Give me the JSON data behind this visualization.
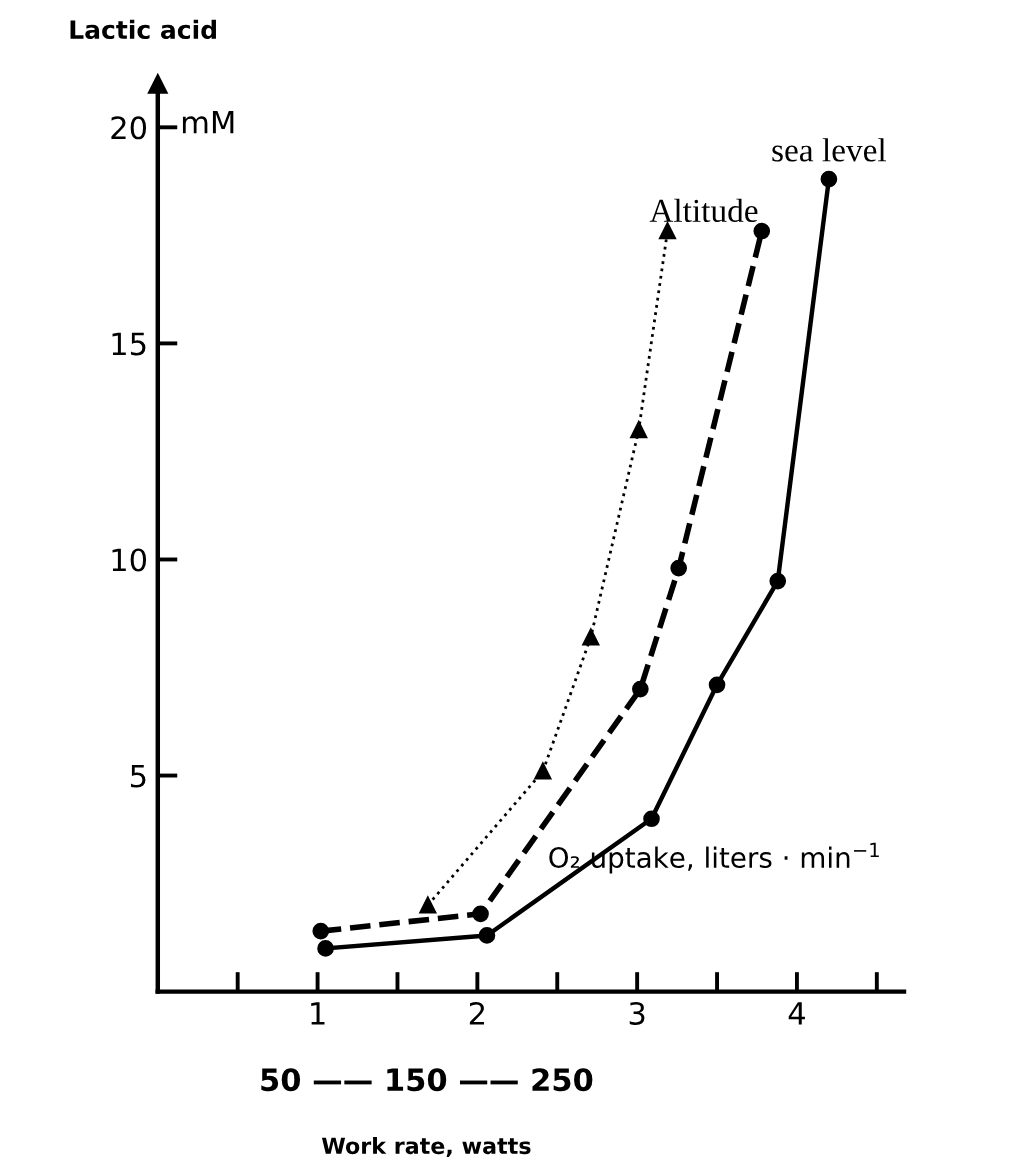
{
  "chart_data": {
    "type": "line",
    "ylabel": "Lactic acid",
    "xlabel": "O₂ uptake, liters · min$^{−1}$",
    "annotations": [
      "mM",
      "50 —— 150 —— 250",
      "Work rate, watts"
    ],
    "xlim": [
      0,
      4.67
    ],
    "ylim": [
      0,
      21
    ],
    "xticks": [
      {
        "value": 0.5,
        "label": null
      },
      1,
      {
        "value": 1.5,
        "label": null
      },
      2,
      {
        "value": 2.5,
        "label": null
      },
      3,
      {
        "value": 3.5,
        "label": null
      },
      4,
      {
        "value": 4.5,
        "label": null
      }
    ],
    "yticks": [
      5,
      10,
      15,
      20
    ],
    "grid": false,
    "legend": false,
    "series": [
      {
        "name": "sea level",
        "color": "#000000",
        "marker": "circle",
        "line_style": "solid",
        "x": [
          1.05,
          2.06,
          3.09,
          3.5,
          3.88,
          4.2
        ],
        "values": [
          1.0,
          1.3,
          4.0,
          7.1,
          9.5,
          18.8
        ]
      },
      {
        "name": "Altitude",
        "color": "#000000",
        "marker": "circle",
        "line_style": "dashed",
        "x": [
          1.02,
          2.02,
          3.02,
          3.26,
          3.78
        ],
        "values": [
          1.4,
          1.8,
          7.0,
          9.8,
          17.6
        ]
      },
      {
        "color": "#000000",
        "marker": "triangle",
        "line_style": "dotted",
        "x": [
          1.69,
          2.41,
          2.71,
          3.01,
          3.19
        ],
        "values": [
          2.0,
          5.1,
          8.2,
          13.0,
          17.6
        ]
      }
    ]
  }
}
